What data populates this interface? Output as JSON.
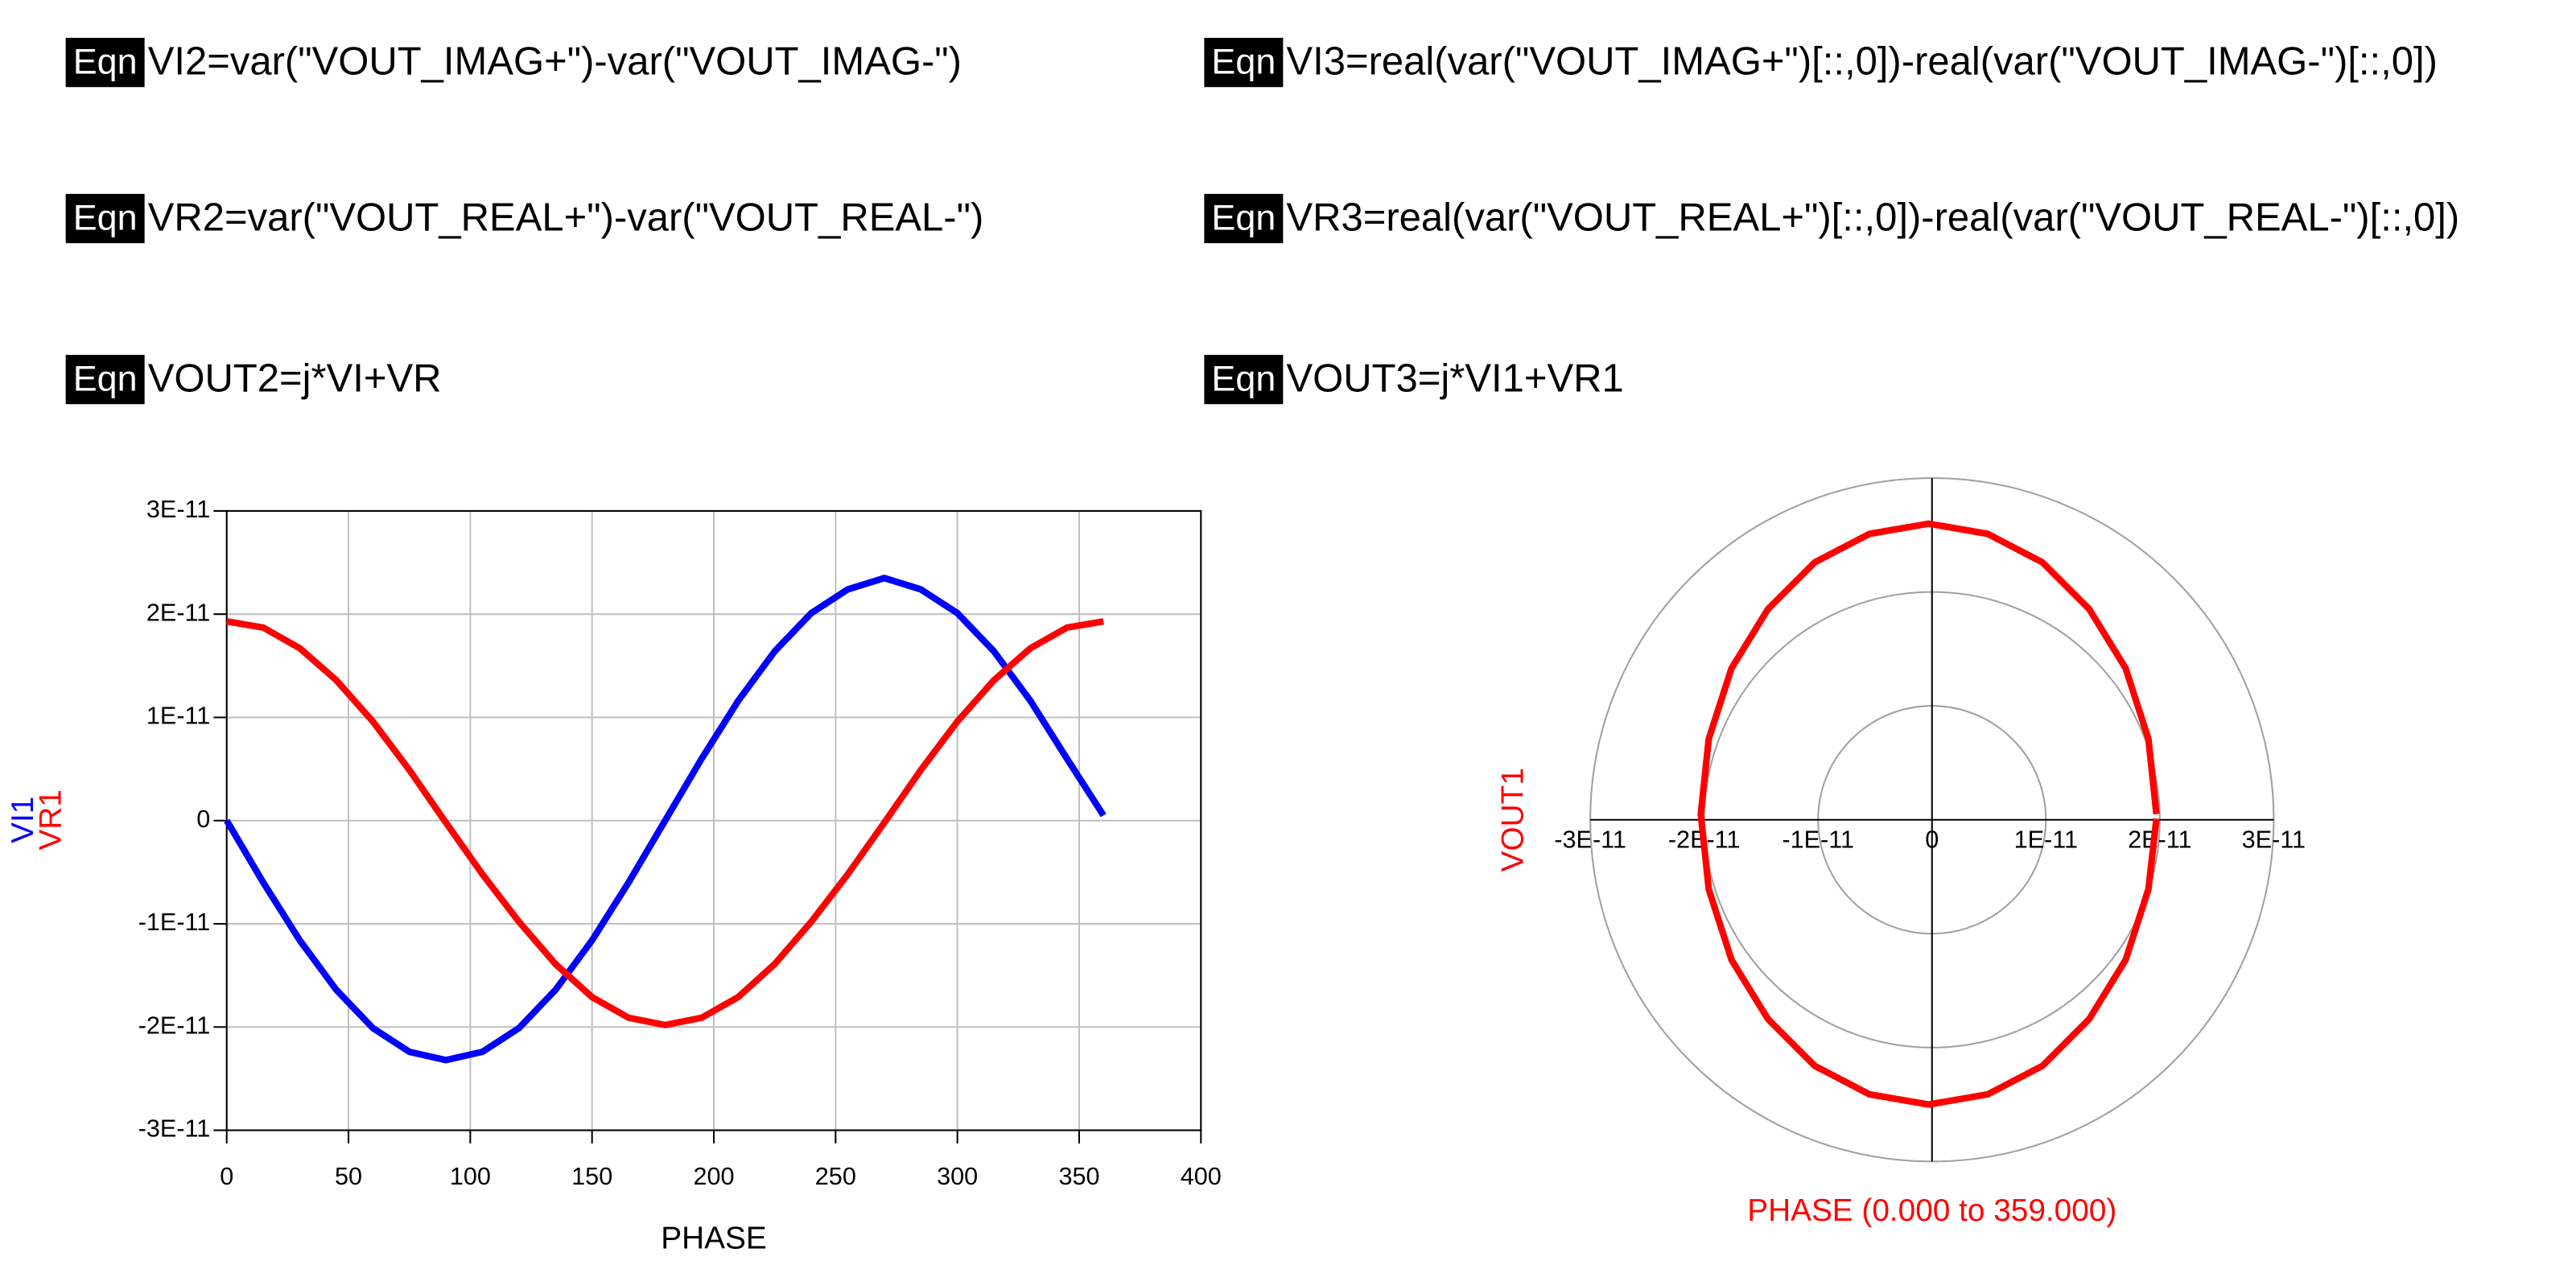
{
  "equations": [
    {
      "tag": "Eqn",
      "text": "VI2=var(\"VOUT_IMAG+\")-var(\"VOUT_IMAG-\")"
    },
    {
      "tag": "Eqn",
      "text": "VR2=var(\"VOUT_REAL+\")-var(\"VOUT_REAL-\")"
    },
    {
      "tag": "Eqn",
      "text": "VOUT2=j*VI+VR"
    },
    {
      "tag": "Eqn",
      "text": "VI3=real(var(\"VOUT_IMAG+\")[::,0])-real(var(\"VOUT_IMAG-\")[::,0])"
    },
    {
      "tag": "Eqn",
      "text": "VR3=real(var(\"VOUT_REAL+\")[::,0])-real(var(\"VOUT_REAL-\")[::,0])"
    },
    {
      "tag": "Eqn",
      "text": "VOUT3=j*VI1+VR1"
    }
  ],
  "chart_data": [
    {
      "type": "line",
      "x_label": "PHASE",
      "x": [
        0,
        15,
        30,
        45,
        60,
        75,
        90,
        105,
        120,
        135,
        150,
        165,
        180,
        195,
        210,
        225,
        240,
        255,
        270,
        285,
        300,
        315,
        330,
        345,
        360
      ],
      "series": [
        {
          "name": "VI1",
          "color": "#0000ff",
          "values": [
            0,
            -6e-12,
            -1.16e-11,
            -1.64e-11,
            -2.01e-11,
            -2.24e-11,
            -2.32e-11,
            -2.24e-11,
            -2.01e-11,
            -1.64e-11,
            -1.16e-11,
            -6e-12,
            0,
            6e-12,
            1.16e-11,
            1.64e-11,
            2.01e-11,
            2.24e-11,
            2.35e-11,
            2.24e-11,
            2.01e-11,
            1.64e-11,
            1.16e-11,
            6e-12,
            5e-13
          ]
        },
        {
          "name": "VR1",
          "color": "#ff0000",
          "values": [
            1.93e-11,
            1.87e-11,
            1.67e-11,
            1.36e-11,
            9.6e-12,
            4.9e-12,
            -2e-13,
            -5.2e-12,
            -9.8e-12,
            -1.39e-11,
            -1.71e-11,
            -1.91e-11,
            -1.98e-11,
            -1.91e-11,
            -1.71e-11,
            -1.39e-11,
            -9.8e-12,
            -5.2e-12,
            -2e-13,
            4.9e-12,
            9.6e-12,
            1.36e-11,
            1.67e-11,
            1.87e-11,
            1.93e-11
          ]
        }
      ],
      "xlim": [
        0,
        400
      ],
      "xticks": [
        0,
        50,
        100,
        150,
        200,
        250,
        300,
        350,
        400
      ],
      "ylim": [
        -3e-11,
        3e-11
      ],
      "yticks": [
        {
          "value": -3e-11,
          "label": "-3E-11"
        },
        {
          "value": -2e-11,
          "label": "-2E-11"
        },
        {
          "value": -1e-11,
          "label": "-1E-11"
        },
        0,
        {
          "value": 1e-11,
          "label": "1E-11"
        },
        {
          "value": 2e-11,
          "label": "2E-11"
        },
        {
          "value": 3e-11,
          "label": "3E-11"
        }
      ],
      "grid": true
    },
    {
      "type": "polar",
      "x_label": "PHASE (0.000 to 359.000)",
      "x": [
        0,
        15,
        30,
        45,
        60,
        75,
        90,
        105,
        120,
        135,
        150,
        165,
        180,
        195,
        210,
        225,
        240,
        255,
        270,
        285,
        300,
        315,
        330,
        345,
        359
      ],
      "series": [
        {
          "name": "VOUT1",
          "color": "#ff0000",
          "real": [
            1.97e-11,
            1.9e-11,
            1.7e-11,
            1.38e-11,
            9.7e-12,
            4.9e-12,
            -3e-13,
            -5.5e-12,
            -1.03e-11,
            -1.44e-11,
            -1.76e-11,
            -1.96e-11,
            -2.03e-11,
            -1.96e-11,
            -1.76e-11,
            -1.44e-11,
            -1.03e-11,
            -5.5e-12,
            -3e-13,
            4.9e-12,
            9.7e-12,
            1.38e-11,
            1.7e-11,
            1.9e-11,
            1.97e-11
          ],
          "imag": [
            5e-13,
            7.1e-12,
            1.33e-11,
            1.85e-11,
            2.26e-11,
            2.51e-11,
            2.6e-11,
            2.51e-11,
            2.26e-11,
            1.85e-11,
            1.33e-11,
            7.1e-12,
            5e-13,
            -6.1e-12,
            -1.23e-11,
            -1.75e-11,
            -2.16e-11,
            -2.41e-11,
            -2.5e-11,
            -2.41e-11,
            -2.16e-11,
            -1.75e-11,
            -1.23e-11,
            -6.1e-12,
            1e-13
          ]
        }
      ],
      "xlim": [
        -3e-11,
        3e-11
      ],
      "xticks": [
        {
          "value": -3e-11,
          "label": "-3E-11"
        },
        {
          "value": -2e-11,
          "label": "-2E-11"
        },
        {
          "value": -1e-11,
          "label": "-1E-11"
        },
        0,
        {
          "value": 1e-11,
          "label": "1E-11"
        },
        {
          "value": 2e-11,
          "label": "2E-11"
        },
        {
          "value": 3e-11,
          "label": "3E-11"
        }
      ]
    }
  ]
}
